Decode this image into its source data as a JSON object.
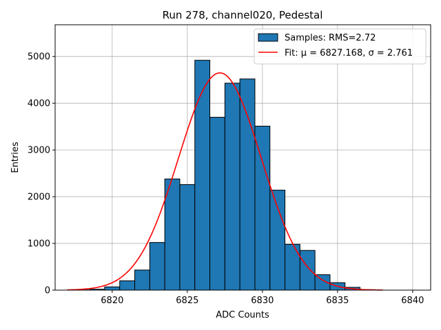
{
  "chart_data": {
    "type": "bar",
    "title": "Run 278, channel020, Pedestal",
    "xlabel": "ADC Counts",
    "ylabel": "Entries",
    "xlim": [
      6816.2,
      6841.2
    ],
    "ylim": [
      0,
      5680
    ],
    "xticks": [
      6820,
      6825,
      6830,
      6835,
      6840
    ],
    "yticks": [
      0,
      1000,
      2000,
      3000,
      4000,
      5000
    ],
    "grid": true,
    "legend_position": "top-right",
    "bin_width": 1,
    "bins": [
      {
        "left": 6817.5,
        "value": 5
      },
      {
        "left": 6818.5,
        "value": 20
      },
      {
        "left": 6819.5,
        "value": 70
      },
      {
        "left": 6820.5,
        "value": 200
      },
      {
        "left": 6821.5,
        "value": 430
      },
      {
        "left": 6822.5,
        "value": 1020
      },
      {
        "left": 6823.5,
        "value": 2380
      },
      {
        "left": 6824.5,
        "value": 2260
      },
      {
        "left": 6825.5,
        "value": 4920
      },
      {
        "left": 6826.5,
        "value": 3700
      },
      {
        "left": 6827.5,
        "value": 4430
      },
      {
        "left": 6828.5,
        "value": 4520
      },
      {
        "left": 6829.5,
        "value": 3510
      },
      {
        "left": 6830.5,
        "value": 2140
      },
      {
        "left": 6831.5,
        "value": 980
      },
      {
        "left": 6832.5,
        "value": 850
      },
      {
        "left": 6833.5,
        "value": 330
      },
      {
        "left": 6834.5,
        "value": 160
      },
      {
        "left": 6835.5,
        "value": 60
      },
      {
        "left": 6836.5,
        "value": 10
      }
    ],
    "fit": {
      "mu": 6827.168,
      "sigma": 2.761,
      "amplitude": 4650,
      "x_range": [
        6817,
        6838
      ]
    },
    "series": [
      {
        "name": "Samples: RMS=2.72",
        "kind": "histogram",
        "color": "#1f77b4"
      },
      {
        "name": "Fit: μ = 6827.168, σ = 2.761",
        "kind": "line",
        "color": "#ff0000"
      }
    ]
  }
}
